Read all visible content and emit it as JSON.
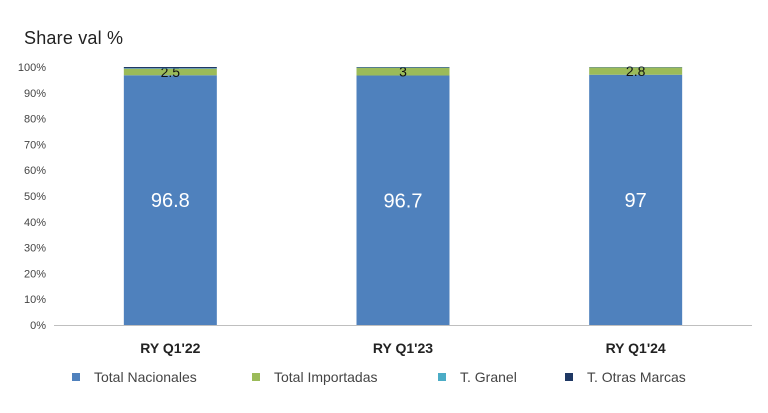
{
  "chart_data": {
    "type": "bar",
    "stacked": true,
    "title": "Share val %",
    "categories": [
      "RY Q1'22",
      "RY Q1'23",
      "RY Q1'24"
    ],
    "yticks": [
      "0%",
      "10%",
      "20%",
      "30%",
      "40%",
      "50%",
      "60%",
      "70%",
      "80%",
      "90%",
      "100%"
    ],
    "ylim": [
      0,
      100
    ],
    "grid": false,
    "legend_position": "bottom",
    "series": [
      {
        "name": "Total Nacionales",
        "color": "#4F81BD",
        "values": [
          96.8,
          96.7,
          97
        ],
        "labels": [
          "96.8",
          "96.7",
          "97"
        ]
      },
      {
        "name": "Total Importadas",
        "color": "#9BBB59",
        "values": [
          2.5,
          3,
          2.8
        ],
        "labels": [
          "2.5",
          "3",
          "2.8"
        ]
      },
      {
        "name": "T. Granel",
        "color": "#4BACC6",
        "values": [
          0.2,
          0.1,
          0.1
        ],
        "labels": [
          "",
          "",
          ""
        ]
      },
      {
        "name": "T. Otras Marcas",
        "color": "#1F3864",
        "values": [
          0.5,
          0.2,
          0.1
        ],
        "labels": [
          "",
          "",
          ""
        ]
      }
    ]
  }
}
